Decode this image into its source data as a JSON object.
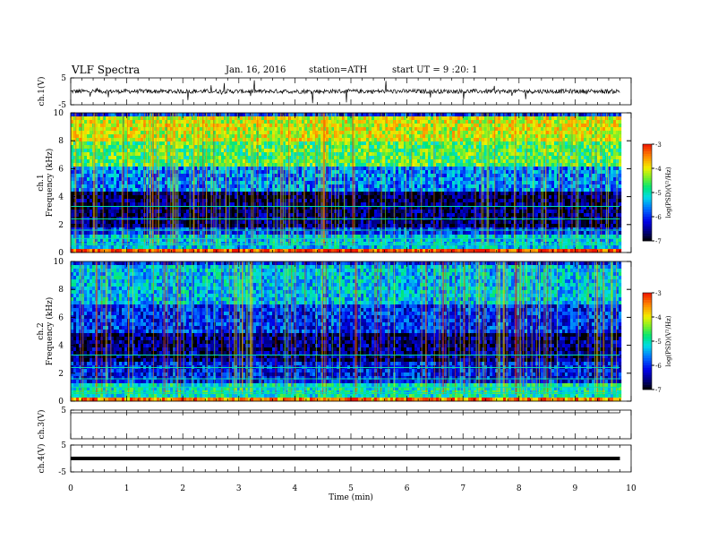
{
  "header": {
    "title": "VLF  Spectra",
    "date": "Jan. 16, 2016",
    "station": "station=ATH",
    "start": "start  UT  =   9  :20: 1"
  },
  "chart_data": [
    {
      "type": "line",
      "panel": "ch1-waveform",
      "ylabel": "ch.1(V)",
      "ylim": [
        -5,
        5
      ],
      "yticks": [
        "5",
        "-5"
      ],
      "xlim": [
        0,
        10
      ],
      "line_color": "#000000",
      "baseline_v": 0.0
    },
    {
      "type": "heatmap",
      "panel": "ch1-spectrogram",
      "ylabel": "ch.1\nFrequency  (kHz)",
      "ylim": [
        0,
        10
      ],
      "yticks": [
        "0",
        "2",
        "4",
        "6",
        "8",
        "10"
      ],
      "xlim": [
        0,
        9.8
      ],
      "colorbar": {
        "label": "log(PSD)(V²/Hz)",
        "range": [
          -7,
          -3
        ],
        "ticks": [
          "-3",
          "-4",
          "-5",
          "-6",
          "-7"
        ]
      },
      "bands_khz_logpsd": [
        [
          0,
          0.3,
          -3.2
        ],
        [
          0.3,
          1.5,
          -5.3
        ],
        [
          1.5,
          2.0,
          -6.0
        ],
        [
          2.0,
          4.4,
          -6.7
        ],
        [
          4.4,
          6.2,
          -5.6
        ],
        [
          6.2,
          8.0,
          -4.6
        ],
        [
          8.0,
          10.0,
          -4.1
        ]
      ]
    },
    {
      "type": "heatmap",
      "panel": "ch2-spectrogram",
      "ylabel": "ch.2\nFrequency  (kHz)",
      "ylim": [
        0,
        10
      ],
      "yticks": [
        "0",
        "2",
        "4",
        "6",
        "8",
        "10"
      ],
      "xlim": [
        0,
        9.8
      ],
      "colorbar": {
        "label": "log(PSD)(V²/Hz)",
        "range": [
          -7,
          -3
        ],
        "ticks": [
          "-3",
          "-4",
          "-5",
          "-6",
          "-7"
        ]
      },
      "bands_khz_logpsd": [
        [
          0,
          0.3,
          -3.5
        ],
        [
          0.3,
          1.5,
          -5.0
        ],
        [
          1.5,
          3.0,
          -6.1
        ],
        [
          3.0,
          5.0,
          -6.6
        ],
        [
          5.0,
          7.0,
          -6.0
        ],
        [
          7.0,
          10.0,
          -5.3
        ]
      ]
    },
    {
      "type": "line",
      "panel": "ch3-waveform",
      "ylabel": "ch.3(V)",
      "ylim": [
        -5,
        5
      ],
      "yticks": [
        "5"
      ],
      "xlim": [
        0,
        10
      ],
      "line_color": "#000000",
      "baseline_v": 5.0
    },
    {
      "type": "line",
      "panel": "ch4-waveform",
      "ylabel": "ch.4(V)",
      "ylim": [
        -5,
        5
      ],
      "yticks": [
        "5",
        "-5"
      ],
      "xlim": [
        0,
        10
      ],
      "line_color": "#000000",
      "baseline_v": 0.0
    }
  ],
  "xaxis": {
    "label": "Time  (min)",
    "ticks": [
      "0",
      "1",
      "2",
      "3",
      "4",
      "5",
      "6",
      "7",
      "8",
      "9",
      "10"
    ],
    "range": [
      0,
      10
    ]
  }
}
